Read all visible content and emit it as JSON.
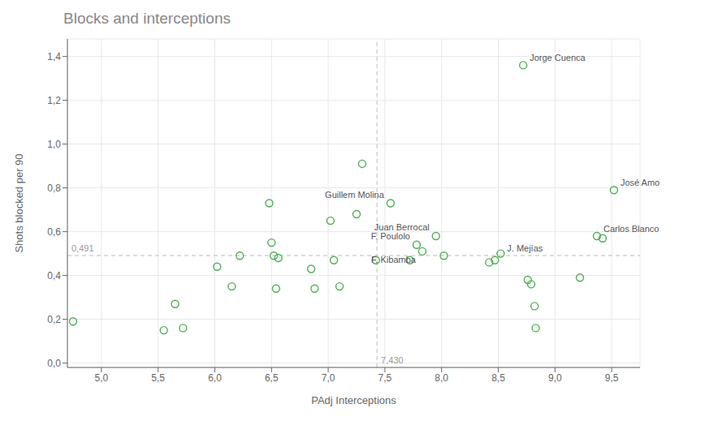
{
  "chart_data": {
    "type": "scatter",
    "title": "Blocks and interceptions",
    "xlabel": "PAdj Interceptions",
    "ylabel": "Shots blocked per 90",
    "xlim": [
      4.7,
      9.75
    ],
    "ylim": [
      -0.02,
      1.48
    ],
    "xticks": [
      {
        "value": 5.0,
        "label": "5,0"
      },
      {
        "value": 5.5,
        "label": "5,5"
      },
      {
        "value": 6.0,
        "label": "6,0"
      },
      {
        "value": 6.5,
        "label": "6,5"
      },
      {
        "value": 7.0,
        "label": "7,0"
      },
      {
        "value": 7.5,
        "label": "7,5"
      },
      {
        "value": 8.0,
        "label": "8,0"
      },
      {
        "value": 8.5,
        "label": "8,5"
      },
      {
        "value": 9.0,
        "label": "9,0"
      },
      {
        "value": 9.5,
        "label": "9,5"
      }
    ],
    "yticks": [
      {
        "value": 0.0,
        "label": "0,0"
      },
      {
        "value": 0.2,
        "label": "0,2"
      },
      {
        "value": 0.4,
        "label": "0,4"
      },
      {
        "value": 0.6,
        "label": "0,6"
      },
      {
        "value": 0.8,
        "label": "0,8"
      },
      {
        "value": 1.0,
        "label": "1,0"
      },
      {
        "value": 1.2,
        "label": "1,2"
      },
      {
        "value": 1.4,
        "label": "1,4"
      }
    ],
    "grid": true,
    "color": "#4caf50",
    "marker": "circle_open",
    "x": [
      4.75,
      5.55,
      5.65,
      5.72,
      6.02,
      6.15,
      6.22,
      6.48,
      6.5,
      6.52,
      6.54,
      6.56,
      6.85,
      6.88,
      7.02,
      7.05,
      7.1,
      7.25,
      7.3,
      7.42,
      7.55,
      7.72,
      7.78,
      7.83,
      7.95,
      8.02,
      8.42,
      8.47,
      8.52,
      8.72,
      8.76,
      8.79,
      8.82,
      8.83,
      9.22,
      9.37,
      9.42,
      9.52
    ],
    "y": [
      0.19,
      0.15,
      0.27,
      0.16,
      0.44,
      0.35,
      0.49,
      0.73,
      0.55,
      0.49,
      0.34,
      0.48,
      0.43,
      0.34,
      0.65,
      0.47,
      0.35,
      0.68,
      0.91,
      0.47,
      0.73,
      0.47,
      0.54,
      0.51,
      0.58,
      0.49,
      0.46,
      0.47,
      0.5,
      1.36,
      0.38,
      0.36,
      0.26,
      0.16,
      0.39,
      0.58,
      0.57,
      0.79
    ],
    "point_labels": [
      null,
      null,
      null,
      null,
      null,
      null,
      null,
      null,
      null,
      null,
      null,
      null,
      null,
      null,
      null,
      null,
      null,
      null,
      null,
      null,
      "Guillem Molina",
      null,
      "F. Poulolo",
      "F. Kibamba",
      "Juan Berrocal",
      null,
      null,
      null,
      "J. Mejías",
      "Jorge Cuenca",
      null,
      null,
      null,
      null,
      null,
      "Carlos Blanco",
      null,
      "José Amo"
    ],
    "reference_lines": [
      {
        "axis": "y",
        "value": 0.491,
        "label": "0,491"
      },
      {
        "axis": "x",
        "value": 7.43,
        "label": "7,430"
      }
    ]
  }
}
